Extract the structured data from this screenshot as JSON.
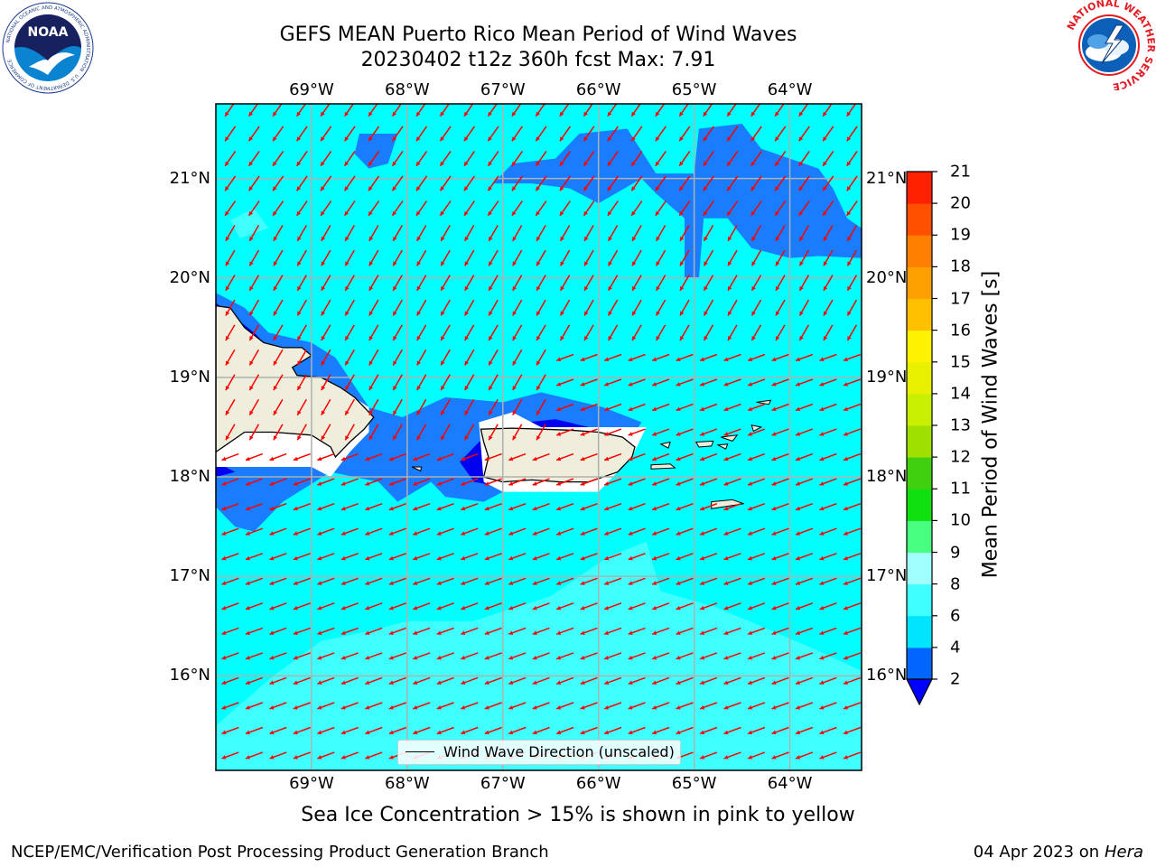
{
  "title": {
    "line1": "GEFS MEAN Puerto Rico Mean Period of Wind Waves",
    "line2": "20230402 t12z 360h fcst   Max: 7.91"
  },
  "subtitle": "Sea Ice Concentration > 15% is shown in pink to yellow",
  "footer": {
    "left": "NCEP/EMC/Verification Post Processing Product Generation Branch",
    "date": "04 Apr 2023 on ",
    "host": "Hera"
  },
  "map": {
    "lon_range": [
      -70.0,
      -63.25
    ],
    "lat_range": [
      15.05,
      21.75
    ],
    "lon_ticks": [
      "69°W",
      "68°W",
      "67°W",
      "66°W",
      "65°W",
      "64°W"
    ],
    "lat_ticks": [
      "21°N",
      "20°N",
      "19°N",
      "18°N",
      "17°N",
      "16°N"
    ],
    "vector_color": "#ff0000",
    "land_color": "#efeddc"
  },
  "legend": {
    "label": "Wind Wave Direction (unscaled)"
  },
  "colorbar": {
    "title": "Mean Period of Wind Waves [s]",
    "ticks": [
      "2",
      "4",
      "6",
      "8",
      "9",
      "10",
      "11",
      "12",
      "13",
      "14",
      "15",
      "16",
      "17",
      "18",
      "19",
      "20",
      "21"
    ],
    "colors": [
      "#0066ff",
      "#00e5ff",
      "#40ffff",
      "#a0ffff",
      "#48ff80",
      "#10e010",
      "#40d010",
      "#a0e000",
      "#c8ee00",
      "#e8f000",
      "#fff200",
      "#ffc000",
      "#ffa000",
      "#ff8000",
      "#ff5000",
      "#ff2000"
    ],
    "extend_color": "#0000ff"
  },
  "logos": {
    "noaa_text": "NOAA",
    "noaa_ring_text": "NATIONAL OCEANIC AND ATMOSPHERIC ADMINISTRATION · U.S. DEPARTMENT OF COMMERCE",
    "nws_ring_text": "NATIONAL WEATHER SERVICE"
  }
}
